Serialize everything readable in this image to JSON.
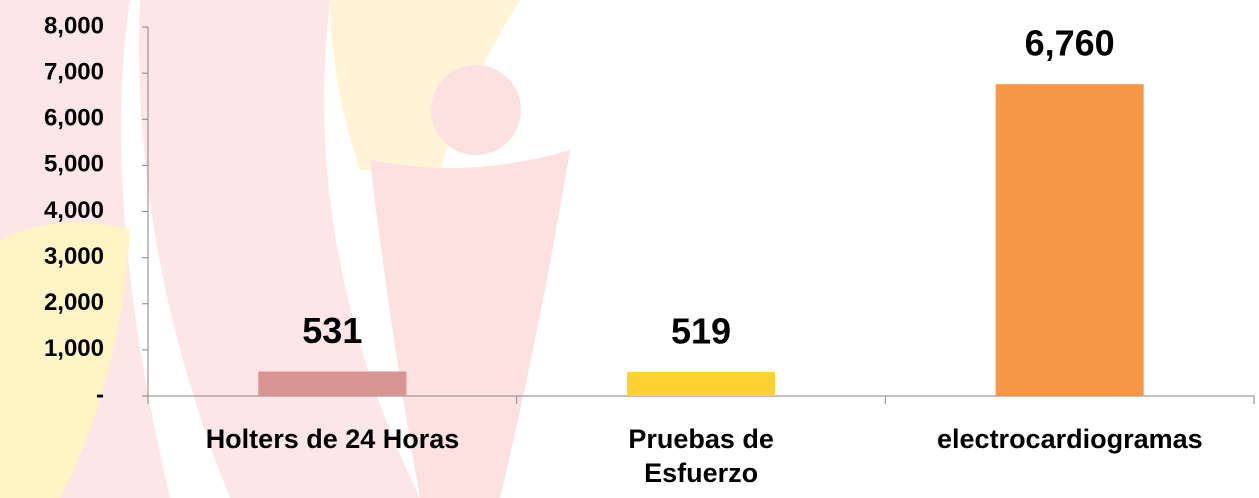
{
  "chart_data": {
    "type": "bar",
    "categories": [
      "Holters de 24 Horas",
      "Pruebas de\nEsfuerzo",
      "electrocardiogramas"
    ],
    "values": [
      531,
      519,
      6760
    ],
    "value_labels": [
      "531",
      "519",
      "6,760"
    ],
    "colors": [
      "#d99594",
      "#fdd231",
      "#f79646"
    ],
    "ylim": [
      0,
      8000
    ],
    "yticks": [
      {
        "value": 0,
        "label": "-"
      },
      {
        "value": 1000,
        "label": "1,000"
      },
      {
        "value": 2000,
        "label": "2,000"
      },
      {
        "value": 3000,
        "label": "3,000"
      },
      {
        "value": 4000,
        "label": "4,000"
      },
      {
        "value": 5000,
        "label": "5,000"
      },
      {
        "value": 6000,
        "label": "6,000"
      },
      {
        "value": 7000,
        "label": "7,000"
      },
      {
        "value": 8000,
        "label": "8,000"
      }
    ],
    "grid": false
  }
}
